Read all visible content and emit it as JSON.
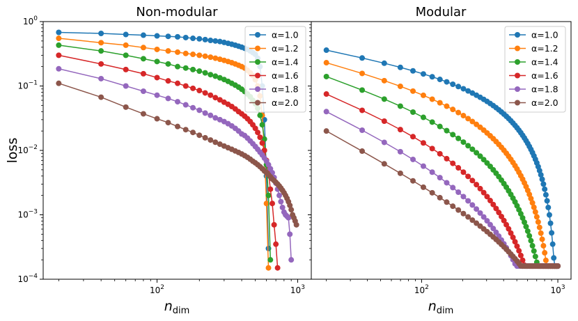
{
  "chart_data": [
    {
      "type": "line",
      "title": "Non-modular",
      "ylabel": "loss",
      "xlabel_main": "n",
      "xlabel_sub": "dim",
      "xscale": "log",
      "yscale": "log",
      "xlim": [
        15.5,
        1250
      ],
      "ylim": [
        0.0001,
        1.0
      ],
      "legend_loc": "top-right",
      "x_ticks": [
        {
          "value": 100,
          "base": "10",
          "exp": "2"
        },
        {
          "value": 1000,
          "base": "10",
          "exp": "3"
        }
      ],
      "y_ticks": [
        {
          "value": 1.0,
          "base": "10",
          "exp": "0"
        },
        {
          "value": 0.1,
          "base": "10",
          "exp": "−1"
        },
        {
          "value": 0.01,
          "base": "10",
          "exp": "−2"
        },
        {
          "value": 0.001,
          "base": "10",
          "exp": "−3"
        },
        {
          "value": 0.0001,
          "base": "10",
          "exp": "−4"
        }
      ],
      "series": [
        {
          "name": "α=1.0",
          "color": "#1f77b4",
          "x": [
            20,
            40,
            60,
            80,
            100,
            120,
            140,
            160,
            180,
            200,
            220,
            240,
            260,
            280,
            300,
            320,
            340,
            360,
            380,
            400,
            420,
            440,
            460,
            480,
            500,
            520,
            540,
            560,
            580,
            600,
            620
          ],
          "y": [
            0.68,
            0.655,
            0.63,
            0.615,
            0.6,
            0.59,
            0.58,
            0.565,
            0.55,
            0.54,
            0.525,
            0.51,
            0.5,
            0.49,
            0.475,
            0.46,
            0.445,
            0.43,
            0.415,
            0.4,
            0.385,
            0.37,
            0.35,
            0.33,
            0.31,
            0.27,
            0.2,
            0.1,
            0.03,
            0.004,
            0.0003
          ]
        },
        {
          "name": "α=1.2",
          "color": "#ff7f0e",
          "x": [
            20,
            40,
            60,
            80,
            100,
            120,
            140,
            160,
            180,
            200,
            220,
            240,
            260,
            280,
            300,
            320,
            340,
            360,
            380,
            400,
            420,
            440,
            460,
            480,
            500,
            520,
            540,
            560,
            580,
            600,
            620
          ],
          "y": [
            0.55,
            0.47,
            0.43,
            0.395,
            0.37,
            0.35,
            0.335,
            0.32,
            0.31,
            0.3,
            0.29,
            0.28,
            0.27,
            0.26,
            0.25,
            0.24,
            0.23,
            0.22,
            0.21,
            0.2,
            0.19,
            0.175,
            0.16,
            0.145,
            0.125,
            0.1,
            0.07,
            0.035,
            0.01,
            0.0015,
            0.00015
          ]
        },
        {
          "name": "α=1.4",
          "color": "#2ca02c",
          "x": [
            20,
            40,
            60,
            80,
            100,
            120,
            140,
            160,
            180,
            200,
            220,
            240,
            260,
            280,
            300,
            320,
            340,
            360,
            380,
            400,
            420,
            440,
            460,
            480,
            500,
            520,
            540,
            560,
            580,
            600,
            620,
            640
          ],
          "y": [
            0.43,
            0.35,
            0.3,
            0.265,
            0.24,
            0.22,
            0.2,
            0.19,
            0.18,
            0.17,
            0.16,
            0.15,
            0.142,
            0.134,
            0.126,
            0.118,
            0.11,
            0.103,
            0.096,
            0.089,
            0.082,
            0.075,
            0.068,
            0.06,
            0.053,
            0.045,
            0.035,
            0.025,
            0.015,
            0.006,
            0.002,
            0.0002
          ]
        },
        {
          "name": "α=1.6",
          "color": "#d62728",
          "x": [
            20,
            40,
            60,
            80,
            100,
            120,
            140,
            160,
            180,
            200,
            220,
            240,
            260,
            280,
            300,
            320,
            340,
            360,
            380,
            400,
            420,
            440,
            460,
            480,
            500,
            520,
            540,
            560,
            580,
            600,
            620,
            640,
            660,
            680,
            700,
            720
          ],
          "y": [
            0.3,
            0.22,
            0.18,
            0.155,
            0.135,
            0.12,
            0.11,
            0.1,
            0.092,
            0.085,
            0.078,
            0.072,
            0.066,
            0.061,
            0.056,
            0.052,
            0.048,
            0.044,
            0.04,
            0.037,
            0.034,
            0.031,
            0.028,
            0.025,
            0.022,
            0.019,
            0.016,
            0.013,
            0.01,
            0.007,
            0.0045,
            0.0025,
            0.0015,
            0.0007,
            0.00035,
            0.00015
          ]
        },
        {
          "name": "α=1.8",
          "color": "#9467bd",
          "x": [
            20,
            40,
            60,
            80,
            100,
            120,
            140,
            160,
            180,
            200,
            220,
            240,
            260,
            280,
            300,
            320,
            340,
            360,
            380,
            400,
            420,
            440,
            460,
            480,
            500,
            520,
            540,
            560,
            580,
            600,
            620,
            640,
            660,
            680,
            700,
            720,
            740,
            760,
            780,
            800,
            820,
            840,
            860,
            880,
            900
          ],
          "y": [
            0.185,
            0.13,
            0.1,
            0.083,
            0.072,
            0.064,
            0.057,
            0.051,
            0.046,
            0.042,
            0.038,
            0.035,
            0.032,
            0.03,
            0.028,
            0.026,
            0.024,
            0.022,
            0.02,
            0.018,
            0.017,
            0.0155,
            0.014,
            0.0127,
            0.0115,
            0.0104,
            0.0094,
            0.0085,
            0.0076,
            0.0068,
            0.006,
            0.0052,
            0.0045,
            0.0038,
            0.0031,
            0.0025,
            0.002,
            0.0016,
            0.0013,
            0.0011,
            0.001,
            0.00095,
            0.0009,
            0.0005,
            0.0002
          ]
        },
        {
          "name": "α=2.0",
          "color": "#8c564b",
          "x": [
            20,
            40,
            60,
            80,
            100,
            120,
            140,
            160,
            180,
            200,
            220,
            240,
            260,
            280,
            300,
            320,
            340,
            360,
            380,
            400,
            420,
            440,
            460,
            480,
            500,
            520,
            540,
            560,
            580,
            600,
            620,
            640,
            660,
            680,
            700,
            720,
            740,
            760,
            780,
            800,
            820,
            840,
            860,
            880,
            900,
            920,
            940,
            960,
            980
          ],
          "y": [
            0.11,
            0.067,
            0.047,
            0.037,
            0.031,
            0.027,
            0.0235,
            0.021,
            0.019,
            0.0172,
            0.0157,
            0.0145,
            0.0134,
            0.0125,
            0.0117,
            0.011,
            0.0104,
            0.0098,
            0.0093,
            0.0088,
            0.0083,
            0.0078,
            0.0073,
            0.0068,
            0.0064,
            0.006,
            0.0056,
            0.0052,
            0.0048,
            0.0045,
            0.0042,
            0.0039,
            0.0036,
            0.0034,
            0.0032,
            0.003,
            0.0028,
            0.0026,
            0.0024,
            0.0022,
            0.002,
            0.0018,
            0.0016,
            0.0014,
            0.0012,
            0.001,
            0.0009,
            0.0008,
            0.0007
          ]
        }
      ]
    },
    {
      "type": "line",
      "title": "Modular",
      "ylabel": "",
      "xlabel_main": "n",
      "xlabel_sub": "dim",
      "xscale": "log",
      "yscale": "log",
      "xlim": [
        15.5,
        1250
      ],
      "ylim": [
        0.0001,
        1.0
      ],
      "legend_loc": "top-right",
      "x_ticks": [
        {
          "value": 100,
          "base": "10",
          "exp": "2"
        },
        {
          "value": 1000,
          "base": "10",
          "exp": "3"
        }
      ],
      "y_ticks": [
        {
          "value": 1.0
        },
        {
          "value": 0.1
        },
        {
          "value": 0.01
        },
        {
          "value": 0.001
        },
        {
          "value": 0.0001
        }
      ],
      "n_range": [
        20,
        1000
      ],
      "n_points": 60,
      "series": [
        {
          "name": "α=1.0",
          "color": "#1f77b4",
          "y0": 0.36,
          "slope": 0.4,
          "curvature": 2.2
        },
        {
          "name": "α=1.2",
          "color": "#ff7f0e",
          "y0": 0.23,
          "slope": 0.55,
          "curvature": 3.0
        },
        {
          "name": "α=1.4",
          "color": "#2ca02c",
          "y0": 0.14,
          "slope": 0.7,
          "curvature": 3.5
        },
        {
          "name": "α=1.6",
          "color": "#d62728",
          "y0": 0.075,
          "slope": 0.85,
          "curvature": 4.0
        },
        {
          "name": "α=1.8",
          "color": "#9467bd",
          "y0": 0.04,
          "slope": 1.0,
          "curvature": 3.5
        },
        {
          "name": "α=2.0",
          "color": "#8c564b",
          "y0": 0.02,
          "slope": 1.15,
          "curvature": 1.4
        }
      ]
    }
  ]
}
